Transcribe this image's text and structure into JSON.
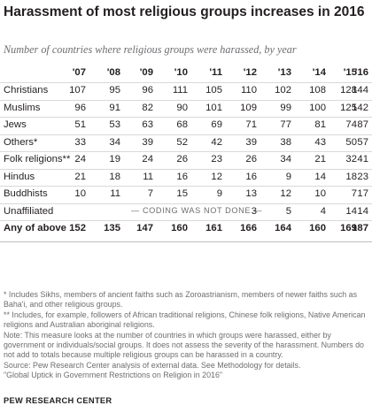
{
  "title": "Harassment of most religious groups increases in 2016",
  "subtitle": "Number of countries where religious groups were harassed, by year",
  "years": [
    "'07",
    "'08",
    "'09",
    "'10",
    "'11",
    "'12",
    "'13",
    "'14",
    "'15",
    "'16"
  ],
  "rows": [
    {
      "label": "Christians",
      "values": [
        "107",
        "95",
        "96",
        "111",
        "105",
        "110",
        "102",
        "108",
        "128",
        "144"
      ]
    },
    {
      "label": "Muslims",
      "values": [
        "96",
        "91",
        "82",
        "90",
        "101",
        "109",
        "99",
        "100",
        "125",
        "142"
      ]
    },
    {
      "label": "Jews",
      "values": [
        "51",
        "53",
        "63",
        "68",
        "69",
        "71",
        "77",
        "81",
        "74",
        "87"
      ]
    },
    {
      "label": "Others*",
      "values": [
        "33",
        "34",
        "39",
        "52",
        "42",
        "39",
        "38",
        "43",
        "50",
        "57"
      ]
    },
    {
      "label": "Folk religions**",
      "values": [
        "24",
        "19",
        "24",
        "26",
        "23",
        "26",
        "34",
        "21",
        "32",
        "41"
      ]
    },
    {
      "label": "Hindus",
      "values": [
        "21",
        "18",
        "11",
        "16",
        "12",
        "16",
        "9",
        "14",
        "18",
        "23"
      ]
    },
    {
      "label": "Buddhists",
      "values": [
        "10",
        "11",
        "7",
        "15",
        "9",
        "13",
        "12",
        "10",
        "7",
        "17"
      ]
    }
  ],
  "unaffiliated": {
    "label": "Unaffiliated",
    "coding_note": "— CODING WAS NOT DONE —",
    "values": [
      "3",
      "5",
      "4",
      "14",
      "14"
    ]
  },
  "total": {
    "label": "Any of above",
    "values": [
      "152",
      "135",
      "147",
      "160",
      "161",
      "166",
      "164",
      "160",
      "169",
      "187"
    ]
  },
  "notes": [
    "* Includes Sikhs, members of ancient faiths such as Zoroastrianism, members of newer faiths such as Baha'i, and other religious groups.",
    "** Includes, for example, followers of African traditional religions, Chinese folk religions, Native American religions and Australian aboriginal religions.",
    "Note: This measure looks at the number of countries in which groups were harassed, either by government or individuals/social groups. It does not assess the severity of the harassment. Numbers do not add to totals because multiple religious groups can be harassed in a country.",
    "Source: Pew Research Center analysis of external data. See Methodology for details.",
    "\"Global Uptick in Government Restrictions on Religion in 2016\""
  ],
  "source_label": "PEW RESEARCH CENTER"
}
